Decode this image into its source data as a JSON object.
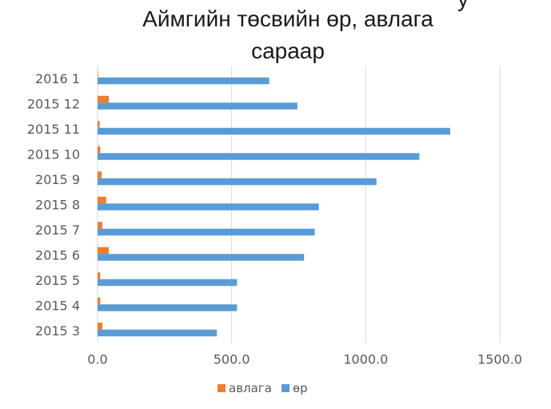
{
  "chart_data": {
    "type": "bar",
    "orientation": "horizontal",
    "title": "Аймгийн төсвийн өр, авлага сараар",
    "title_partial_text": "у",
    "categories": [
      "2016 1",
      "2015 12",
      "2015 11",
      "2015 10",
      "2015 9",
      "2015 8",
      "2015 7",
      "2015 6",
      "2015 5",
      "2015 4",
      "2015 3"
    ],
    "series": [
      {
        "name": "авлага",
        "color": "#ED7D31",
        "values": [
          2,
          42,
          8,
          10,
          15,
          32,
          18,
          42,
          10,
          10,
          18
        ]
      },
      {
        "name": "өр",
        "color": "#5B9BD5",
        "values": [
          640,
          745,
          1315,
          1200,
          1040,
          825,
          810,
          770,
          520,
          520,
          445
        ]
      }
    ],
    "xlim": [
      0,
      1500
    ],
    "xticks": [
      "0.0",
      "500.0",
      "1000.0",
      "1500.0"
    ],
    "grid": "vertical",
    "legend": "bottom",
    "xlabel": "",
    "ylabel": ""
  }
}
